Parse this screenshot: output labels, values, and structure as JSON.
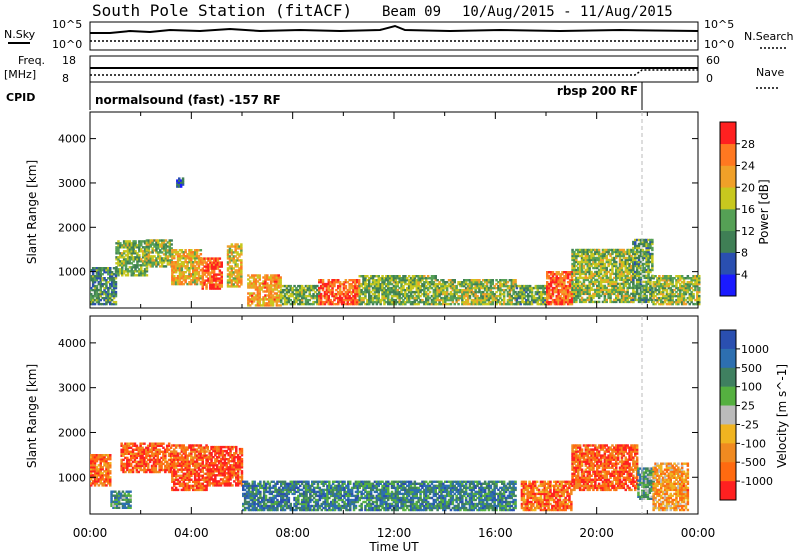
{
  "title": "South Pole Station (fitACF)",
  "beam_label": "Beam 09",
  "date_range": "10/Aug/2015 - 11/Aug/2015",
  "top_panels": {
    "nsky_label": "N.Sky",
    "nsearch_label": "N.Search",
    "freq_label_line1": "Freq.",
    "freq_label_line2": "[MHz]",
    "nave_label": "Nave",
    "cpid_label": "CPID",
    "noise_left_ticks": [
      "10^5",
      "10^0"
    ],
    "noise_right_ticks": [
      "10^5",
      "10^0"
    ],
    "freq_left_ticks": [
      "18",
      "8"
    ],
    "freq_right_ticks": [
      "60",
      "0"
    ],
    "cpid_mode_1": "normalsound (fast) -157 RF",
    "cpid_mode_2": "rbsp 200 RF"
  },
  "colors": {
    "power_scale": [
      "#1a1aff",
      "#2a4fb0",
      "#3f7f55",
      "#55a055",
      "#c8c81e",
      "#f0a028",
      "#ff7820",
      "#ff2020"
    ],
    "velocity_scale": [
      "#2a4fb0",
      "#2d6fb0",
      "#3f8060",
      "#55b040",
      "#bbbbbb",
      "#f0b420",
      "#f08a20",
      "#ff6a10",
      "#ff2020"
    ]
  },
  "chart_data": [
    {
      "type": "heatmap",
      "panel": "power",
      "ylabel": "Slant Range [km]",
      "ylim": [
        180,
        4600
      ],
      "yticks": [
        "1000",
        "2000",
        "3000",
        "4000"
      ],
      "xlim": [
        0,
        24
      ],
      "colorbar_label": "Power [dB]",
      "colorbar_ticks": [
        "4",
        "8",
        "12",
        "16",
        "20",
        "24",
        "28"
      ],
      "colorbar_range": [
        0,
        32
      ],
      "regions": [
        {
          "t": [
            0.0,
            1.0
          ],
          "r": [
            250,
            1100
          ],
          "level": 0.35
        },
        {
          "t": [
            1.0,
            2.2
          ],
          "r": [
            900,
            1700
          ],
          "level": 0.45
        },
        {
          "t": [
            2.2,
            3.2
          ],
          "r": [
            1100,
            1700
          ],
          "level": 0.5
        },
        {
          "t": [
            3.2,
            4.4
          ],
          "r": [
            700,
            1500
          ],
          "level": 0.65
        },
        {
          "t": [
            4.4,
            5.2
          ],
          "r": [
            600,
            1300
          ],
          "level": 0.85
        },
        {
          "t": [
            5.4,
            6.0
          ],
          "r": [
            650,
            1600
          ],
          "level": 0.6
        },
        {
          "t": [
            6.2,
            7.5
          ],
          "r": [
            220,
            900
          ],
          "level": 0.7
        },
        {
          "t": [
            7.5,
            9.0
          ],
          "r": [
            250,
            700
          ],
          "level": 0.45
        },
        {
          "t": [
            9.0,
            10.6
          ],
          "r": [
            250,
            800
          ],
          "level": 0.85
        },
        {
          "t": [
            10.6,
            13.6
          ],
          "r": [
            250,
            900
          ],
          "level": 0.45
        },
        {
          "t": [
            13.6,
            16.8
          ],
          "r": [
            250,
            800
          ],
          "level": 0.5
        },
        {
          "t": [
            16.8,
            18.0
          ],
          "r": [
            250,
            700
          ],
          "level": 0.4
        },
        {
          "t": [
            18.0,
            19.0
          ],
          "r": [
            250,
            1000
          ],
          "level": 0.85
        },
        {
          "t": [
            19.0,
            21.4
          ],
          "r": [
            300,
            1500
          ],
          "level": 0.5
        },
        {
          "t": [
            21.4,
            22.2
          ],
          "r": [
            300,
            1700
          ],
          "level": 0.4
        },
        {
          "t": [
            22.2,
            24.0
          ],
          "r": [
            250,
            900
          ],
          "level": 0.5
        },
        {
          "t": [
            3.4,
            3.7
          ],
          "r": [
            2900,
            3100
          ],
          "level": 0.2
        }
      ]
    },
    {
      "type": "heatmap",
      "panel": "velocity",
      "ylabel": "Slant Range [km]",
      "ylim": [
        180,
        4600
      ],
      "yticks": [
        "1000",
        "2000",
        "3000",
        "4000"
      ],
      "xlabel": "Time UT",
      "xlim": [
        0,
        24
      ],
      "xticks": [
        "00:00",
        "04:00",
        "08:00",
        "12:00",
        "16:00",
        "20:00",
        "00:00"
      ],
      "colorbar_label": "Velocity [m s^-1]",
      "colorbar_ticks": [
        "1000",
        "500",
        "100",
        "25",
        "-25",
        "-100",
        "-500",
        "-1000"
      ],
      "regions": [
        {
          "t": [
            0.0,
            0.8
          ],
          "r": [
            800,
            1500
          ],
          "level": 0.8
        },
        {
          "t": [
            0.8,
            1.6
          ],
          "r": [
            300,
            700
          ],
          "level": 0.3
        },
        {
          "t": [
            1.2,
            3.2
          ],
          "r": [
            1100,
            1750
          ],
          "level": 0.85
        },
        {
          "t": [
            3.2,
            4.6
          ],
          "r": [
            700,
            1700
          ],
          "level": 0.85
        },
        {
          "t": [
            4.6,
            6.0
          ],
          "r": [
            800,
            1700
          ],
          "level": 0.9
        },
        {
          "t": [
            6.0,
            8.5
          ],
          "r": [
            250,
            900
          ],
          "level": 0.2
        },
        {
          "t": [
            8.5,
            16.8
          ],
          "r": [
            250,
            900
          ],
          "level": 0.25
        },
        {
          "t": [
            17.0,
            19.0
          ],
          "r": [
            250,
            900
          ],
          "level": 0.8
        },
        {
          "t": [
            19.0,
            21.6
          ],
          "r": [
            700,
            1700
          ],
          "level": 0.85
        },
        {
          "t": [
            21.6,
            22.2
          ],
          "r": [
            500,
            1200
          ],
          "level": 0.3
        },
        {
          "t": [
            22.2,
            23.6
          ],
          "r": [
            250,
            1300
          ],
          "level": 0.7
        }
      ]
    }
  ]
}
